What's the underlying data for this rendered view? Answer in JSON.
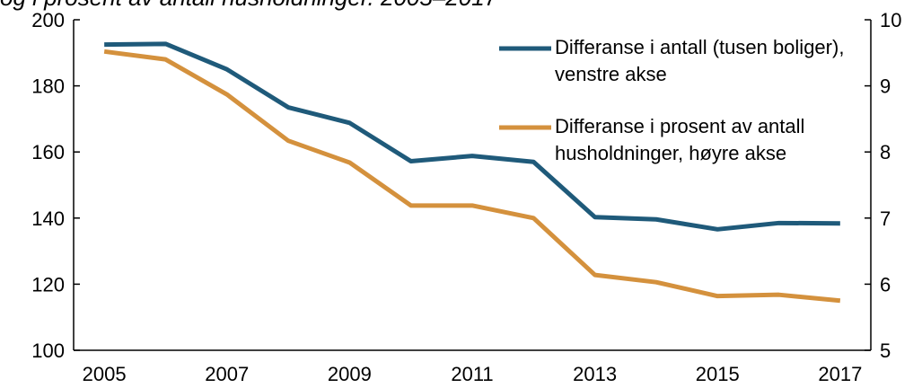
{
  "chart_data": {
    "type": "line",
    "title": "og i prosent av antall husholdninger. 2005–2017",
    "x": [
      2005,
      2006,
      2007,
      2008,
      2009,
      2010,
      2011,
      2012,
      2013,
      2014,
      2015,
      2016,
      2017
    ],
    "xlim": [
      2004.5,
      2017.5
    ],
    "xticks": [
      2005,
      2007,
      2009,
      2011,
      2013,
      2015,
      2017
    ],
    "ylim": [
      100,
      200
    ],
    "yticks": [
      100,
      120,
      140,
      160,
      180,
      200
    ],
    "y2lim": [
      5,
      10
    ],
    "y2ticks": [
      5,
      6,
      7,
      8,
      9,
      10
    ],
    "series": [
      {
        "name": "Differanse i antall (tusen boliger), venstre akse",
        "color": "#1f5a7a",
        "values": [
          192.5,
          192.7,
          185,
          173.5,
          168.8,
          157.2,
          158.8,
          157,
          140.3,
          139.6,
          136.6,
          138.5,
          138.4
        ]
      },
      {
        "name": "Differanse i prosent av antall husholdninger, høyre akse",
        "color": "#d4913d",
        "axis": "y2",
        "values": [
          9.52,
          9.4,
          8.87,
          8.17,
          7.84,
          7.19,
          7.19,
          7.0,
          6.14,
          6.03,
          5.82,
          5.84,
          5.75
        ]
      }
    ],
    "legend": "upper right"
  }
}
